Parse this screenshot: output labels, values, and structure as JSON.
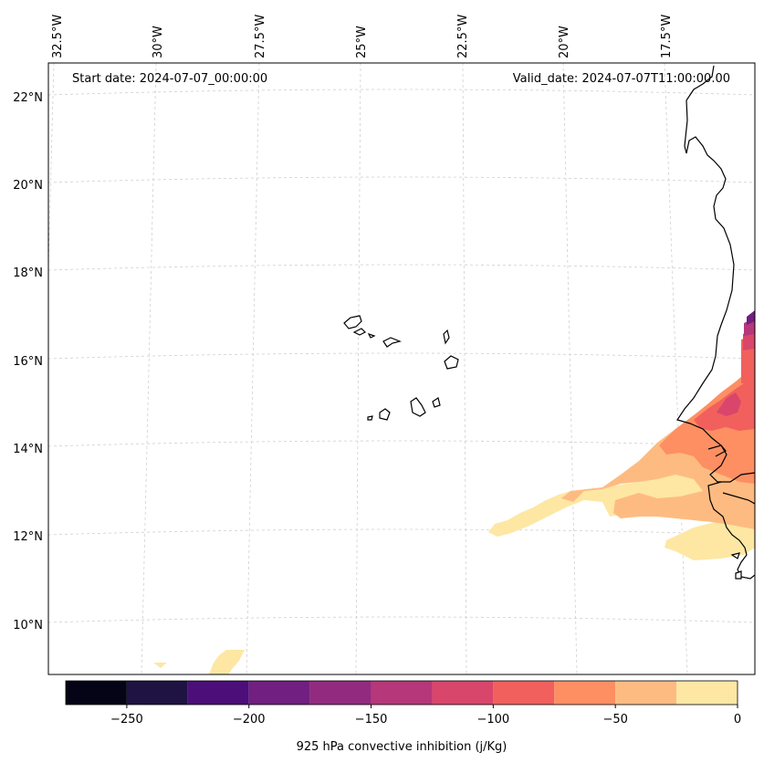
{
  "header": {
    "start_date": "Start date: 2024-07-07_00:00:00",
    "valid_date": "Valid_date: 2024-07-07T11:00:00.00"
  },
  "lon_labels": [
    "32.5°W",
    "30°W",
    "27.5°W",
    "25°W",
    "22.5°W",
    "20°W",
    "17.5°W"
  ],
  "lat_labels": [
    "22°N",
    "20°N",
    "18°N",
    "16°N",
    "14°N",
    "12°N",
    "10°N"
  ],
  "colorbar": {
    "label": "925 hPa convective inhibition (j/Kg)",
    "ticks": [
      "−250",
      "−200",
      "−150",
      "−100",
      "−50",
      "0"
    ],
    "levels": [
      -275,
      -250,
      -225,
      -200,
      -175,
      -150,
      -125,
      -100,
      -75,
      -50,
      -25,
      0
    ],
    "colors": [
      "#050416",
      "#1e1342",
      "#4c0f7a",
      "#711f81",
      "#922b7f",
      "#b6377a",
      "#d9466b",
      "#f1605d",
      "#fd8f62",
      "#febb81",
      "#fde7a3"
    ]
  },
  "map": {
    "colors": {
      "light": "#fde7a3",
      "orange": "#febb81",
      "salmon": "#fd8f62",
      "red": "#f1605d",
      "pink": "#d9466b",
      "magenta": "#b6377a",
      "purple": "#711f81"
    }
  }
}
